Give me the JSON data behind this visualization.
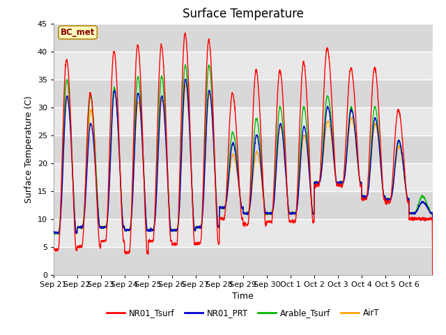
{
  "title": "Surface Temperature",
  "ylabel": "Surface Temperature (C)",
  "xlabel": "Time",
  "ylim": [
    0,
    45
  ],
  "fig_facecolor": "#ffffff",
  "plot_facecolor": "#ffffff",
  "annotation_text": "BC_met",
  "annotation_color": "#8b0000",
  "annotation_bg": "#ffffc0",
  "annotation_edge": "#b8860b",
  "legend_entries": [
    "NR01_Tsurf",
    "NR01_PRT",
    "Arable_Tsurf",
    "AirT"
  ],
  "legend_colors": [
    "#ff0000",
    "#0000cc",
    "#00bb00",
    "#ffa500"
  ],
  "xtick_labels": [
    "Sep 21",
    "Sep 22",
    "Sep 23",
    "Sep 24",
    "Sep 25",
    "Sep 26",
    "Sep 27",
    "Sep 28",
    "Sep 29",
    "Sep 30",
    "Oct 1",
    "Oct 2",
    "Oct 3",
    "Oct 4",
    "Oct 5",
    "Oct 6"
  ],
  "n_days": 16,
  "band_color_dark": "#d8d8d8",
  "band_color_light": "#e8e8e8",
  "grid_color": "#ffffff",
  "peaks_red": [
    38.5,
    32.5,
    40.0,
    41.2,
    41.0,
    43.2,
    42.0,
    32.5,
    36.5,
    36.5,
    38.0,
    40.5,
    37.0,
    37.0,
    29.5,
    10.0
  ],
  "peaks_blue": [
    32.0,
    27.0,
    33.0,
    32.5,
    32.0,
    35.0,
    33.0,
    23.5,
    25.0,
    27.0,
    26.5,
    30.0,
    29.5,
    28.0,
    24.0,
    13.0
  ],
  "peaks_green": [
    35.0,
    32.0,
    33.5,
    35.5,
    35.5,
    37.5,
    37.5,
    25.5,
    28.0,
    30.0,
    30.0,
    32.0,
    30.0,
    30.0,
    24.0,
    14.0
  ],
  "peaks_orange": [
    32.0,
    29.5,
    33.0,
    31.0,
    31.5,
    34.0,
    32.5,
    21.5,
    22.0,
    26.5,
    25.0,
    27.5,
    28.0,
    27.0,
    23.0,
    13.0
  ],
  "lows_red": [
    4.5,
    5.0,
    6.0,
    4.0,
    6.0,
    5.5,
    5.5,
    10.0,
    9.0,
    9.5,
    9.5,
    16.0,
    16.0,
    13.5,
    13.0,
    10.0
  ],
  "lows_other": [
    7.5,
    8.5,
    8.5,
    8.0,
    8.0,
    8.0,
    8.5,
    12.0,
    11.0,
    11.0,
    11.0,
    16.5,
    16.5,
    14.0,
    13.5,
    11.0
  ]
}
